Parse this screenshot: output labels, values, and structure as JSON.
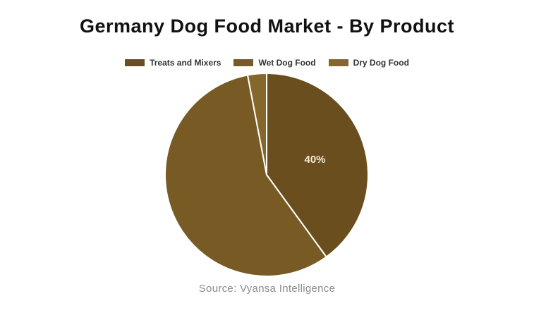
{
  "page_background": "#ffffff",
  "footer": {
    "source_text": "Source: Vyansa Intelligence"
  },
  "chart_data": {
    "type": "pie",
    "title": "Germany Dog Food Market - By Product",
    "start_angle_deg": 0,
    "direction": "clockwise",
    "legend_position": "top",
    "slice_border_color": "#ffffff",
    "label_color": "#f2ecd9",
    "series": [
      {
        "name": "Treats and Mixers",
        "value": 40,
        "color": "#6b4e1d",
        "label": "40%"
      },
      {
        "name": "Wet Dog Food",
        "value": 57,
        "color": "#775a24",
        "label": ""
      },
      {
        "name": "Dry Dog Food",
        "value": 3,
        "color": "#85672c",
        "label": ""
      }
    ]
  }
}
